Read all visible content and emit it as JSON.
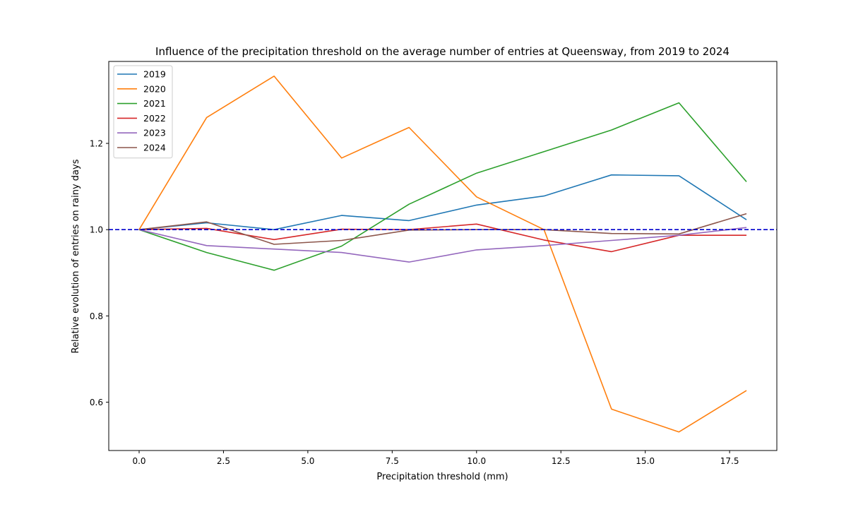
{
  "chart_data": {
    "type": "line",
    "title": "Influence of the precipitation threshold on the average number of entries at Queensway, from 2019 to 2024",
    "xlabel": "Precipitation threshold (mm)",
    "ylabel": "Relative evolution of entries on rainy days",
    "xlim": [
      -0.9,
      18.9
    ],
    "ylim": [
      0.488,
      1.39
    ],
    "xticks": [
      0.0,
      2.5,
      5.0,
      7.5,
      10.0,
      12.5,
      15.0,
      17.5
    ],
    "xtick_labels": [
      "0.0",
      "2.5",
      "5.0",
      "7.5",
      "10.0",
      "12.5",
      "15.0",
      "17.5"
    ],
    "yticks": [
      0.6,
      0.8,
      1.0,
      1.2
    ],
    "ytick_labels": [
      "0.6",
      "0.8",
      "1.0",
      "1.2"
    ],
    "grid": false,
    "legend_position": "top-left",
    "x": [
      0,
      2,
      4,
      6,
      8,
      10,
      12,
      14,
      16,
      18
    ],
    "reference_line": {
      "y": 1.0,
      "style": "dashed",
      "color": "#0000cc"
    },
    "series": [
      {
        "name": "2019",
        "color": "#1f77b4",
        "values": [
          1.0,
          1.016,
          1.0,
          1.033,
          1.021,
          1.057,
          1.078,
          1.127,
          1.125,
          1.023
        ]
      },
      {
        "name": "2020",
        "color": "#ff7f0e",
        "values": [
          1.0,
          1.26,
          1.356,
          1.166,
          1.237,
          1.076,
          1.0,
          0.584,
          0.531,
          0.627
        ]
      },
      {
        "name": "2021",
        "color": "#2ca02c",
        "values": [
          1.0,
          0.947,
          0.906,
          0.962,
          1.059,
          1.131,
          1.181,
          1.231,
          1.294,
          1.111
        ]
      },
      {
        "name": "2022",
        "color": "#d62728",
        "values": [
          1.0,
          1.003,
          0.977,
          1.001,
          1.0,
          1.013,
          0.976,
          0.949,
          0.987,
          0.987
        ]
      },
      {
        "name": "2023",
        "color": "#9467bd",
        "values": [
          1.0,
          0.963,
          0.955,
          0.947,
          0.925,
          0.953,
          0.963,
          0.975,
          0.987,
          1.005
        ]
      },
      {
        "name": "2024",
        "color": "#8c564b",
        "values": [
          1.0,
          1.018,
          0.966,
          0.975,
          0.999,
          1.0,
          1.0,
          0.991,
          0.99,
          1.037
        ]
      }
    ]
  }
}
